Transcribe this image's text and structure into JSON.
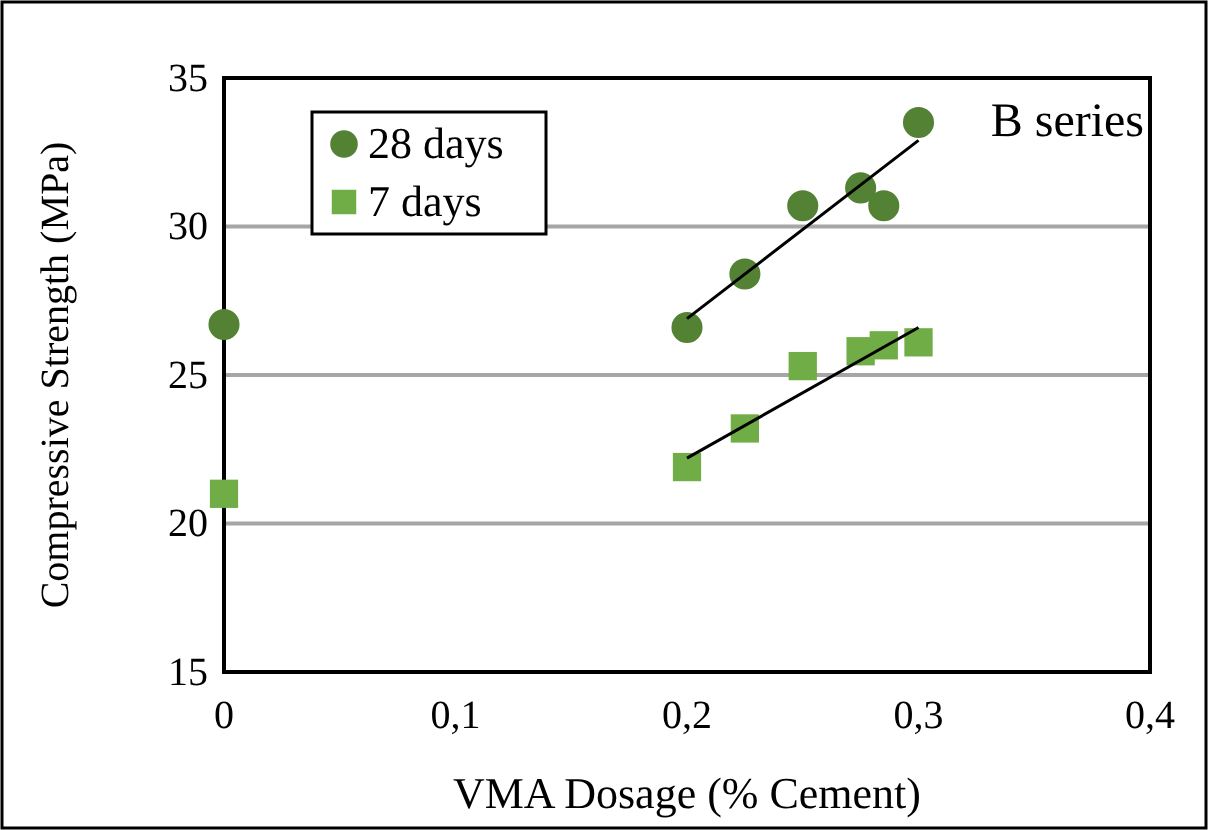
{
  "chart_data": {
    "type": "scatter",
    "xlabel": "VMA Dosage (% Cement)",
    "ylabel": "Compressive Strength (MPa)",
    "xlim": [
      0,
      0.4
    ],
    "xticks": [
      {
        "value": 0,
        "label": "0"
      },
      {
        "value": 0.1,
        "label": "0,1"
      },
      {
        "value": 0.2,
        "label": "0,2"
      },
      {
        "value": 0.3,
        "label": "0,3"
      },
      {
        "value": 0.4,
        "label": "0,4"
      }
    ],
    "ylim": [
      15,
      35
    ],
    "yticks": [
      15,
      20,
      25,
      30,
      35
    ],
    "grid": "y",
    "legend": "top left",
    "annotations": [
      "B series"
    ],
    "series": [
      {
        "name": "28 days",
        "color": "#548235",
        "marker": "circle",
        "x": [
          0,
          0.2,
          0.225,
          0.25,
          0.275,
          0.285,
          0.3
        ],
        "values": [
          26.7,
          26.6,
          28.4,
          30.7,
          31.3,
          30.7,
          33.5
        ]
      },
      {
        "name": "7 days",
        "color": "#70ad47",
        "marker": "square",
        "x": [
          0,
          0.2,
          0.225,
          0.25,
          0.275,
          0.285,
          0.3
        ],
        "values": [
          21.0,
          21.9,
          23.2,
          25.3,
          25.8,
          26.0,
          26.1
        ]
      },
      {
        "type": "line",
        "color": "#000000",
        "marker": "none",
        "x": [
          0.2,
          0.3
        ],
        "values": [
          26.9,
          32.9
        ]
      },
      {
        "type": "line",
        "color": "#000000",
        "marker": "none",
        "x": [
          0.2,
          0.3
        ],
        "values": [
          22.2,
          26.6
        ]
      }
    ]
  }
}
